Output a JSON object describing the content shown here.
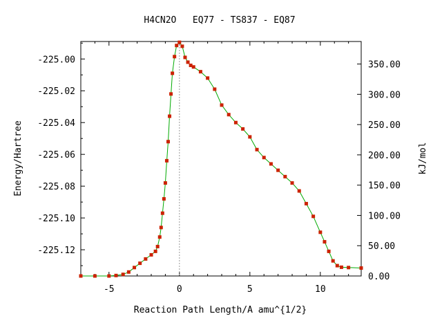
{
  "chart_data": {
    "type": "line",
    "title": "H4CN2O   EQ77 - TS837 - EQ87",
    "xlabel": "Reaction Path Length/A amu^{1/2}",
    "ylabel": "Energy/Hartree",
    "y2label": "kJ/mol",
    "xlim": [
      -7.0,
      12.9
    ],
    "ylim": [
      -225.1365,
      -224.989
    ],
    "y2lim": [
      0.0,
      387.2
    ],
    "x_ticks": [
      -5,
      0,
      5,
      10
    ],
    "x_tick_labels": [
      "-5",
      "0",
      "5",
      "10"
    ],
    "y_ticks": [
      -225.0,
      -225.02,
      -225.04,
      -225.06,
      -225.08,
      -225.1,
      -225.12
    ],
    "y_tick_labels": [
      "-225.00",
      "-225.02",
      "-225.04",
      "-225.06",
      "-225.08",
      "-225.10",
      "-225.12"
    ],
    "y2_ticks": [
      0,
      50,
      100,
      150,
      200,
      250,
      300,
      350
    ],
    "y2_tick_labels": [
      "0.00",
      "50.00",
      "100.00",
      "150.00",
      "200.00",
      "250.00",
      "300.00",
      "350.00"
    ],
    "ts_marker_x": 0.0,
    "grid": false,
    "legend": "none",
    "series": [
      {
        "line_color": "#00aa00",
        "marker_color": "#cc2200",
        "x": [
          -7.0,
          -6.0,
          -5.0,
          -4.5,
          -4.0,
          -3.6,
          -3.2,
          -2.8,
          -2.4,
          -2.0,
          -1.7,
          -1.55,
          -1.4,
          -1.3,
          -1.2,
          -1.1,
          -1.0,
          -0.9,
          -0.8,
          -0.7,
          -0.6,
          -0.5,
          -0.35,
          -0.2,
          0.0,
          0.2,
          0.4,
          0.6,
          0.8,
          1.0,
          1.5,
          2.0,
          2.5,
          3.0,
          3.5,
          4.0,
          4.5,
          5.0,
          5.5,
          6.0,
          6.5,
          7.0,
          7.5,
          8.0,
          8.5,
          9.0,
          9.5,
          10.0,
          10.3,
          10.6,
          10.9,
          11.2,
          11.5,
          12.0,
          12.9
        ],
        "y": [
          -225.1365,
          -225.1365,
          -225.1365,
          -225.1362,
          -225.1355,
          -225.134,
          -225.1312,
          -225.1285,
          -225.1258,
          -225.1232,
          -225.121,
          -225.118,
          -225.112,
          -225.106,
          -225.097,
          -225.088,
          -225.078,
          -225.064,
          -225.052,
          -225.036,
          -225.022,
          -225.009,
          -224.9985,
          -224.9915,
          -224.9895,
          -224.992,
          -224.999,
          -225.002,
          -225.004,
          -225.005,
          -225.008,
          -225.012,
          -225.019,
          -225.029,
          -225.035,
          -225.04,
          -225.044,
          -225.049,
          -225.057,
          -225.062,
          -225.066,
          -225.07,
          -225.074,
          -225.078,
          -225.083,
          -225.091,
          -225.099,
          -225.109,
          -225.115,
          -225.121,
          -225.127,
          -225.13,
          -225.131,
          -225.1312,
          -225.1315
        ]
      }
    ]
  }
}
